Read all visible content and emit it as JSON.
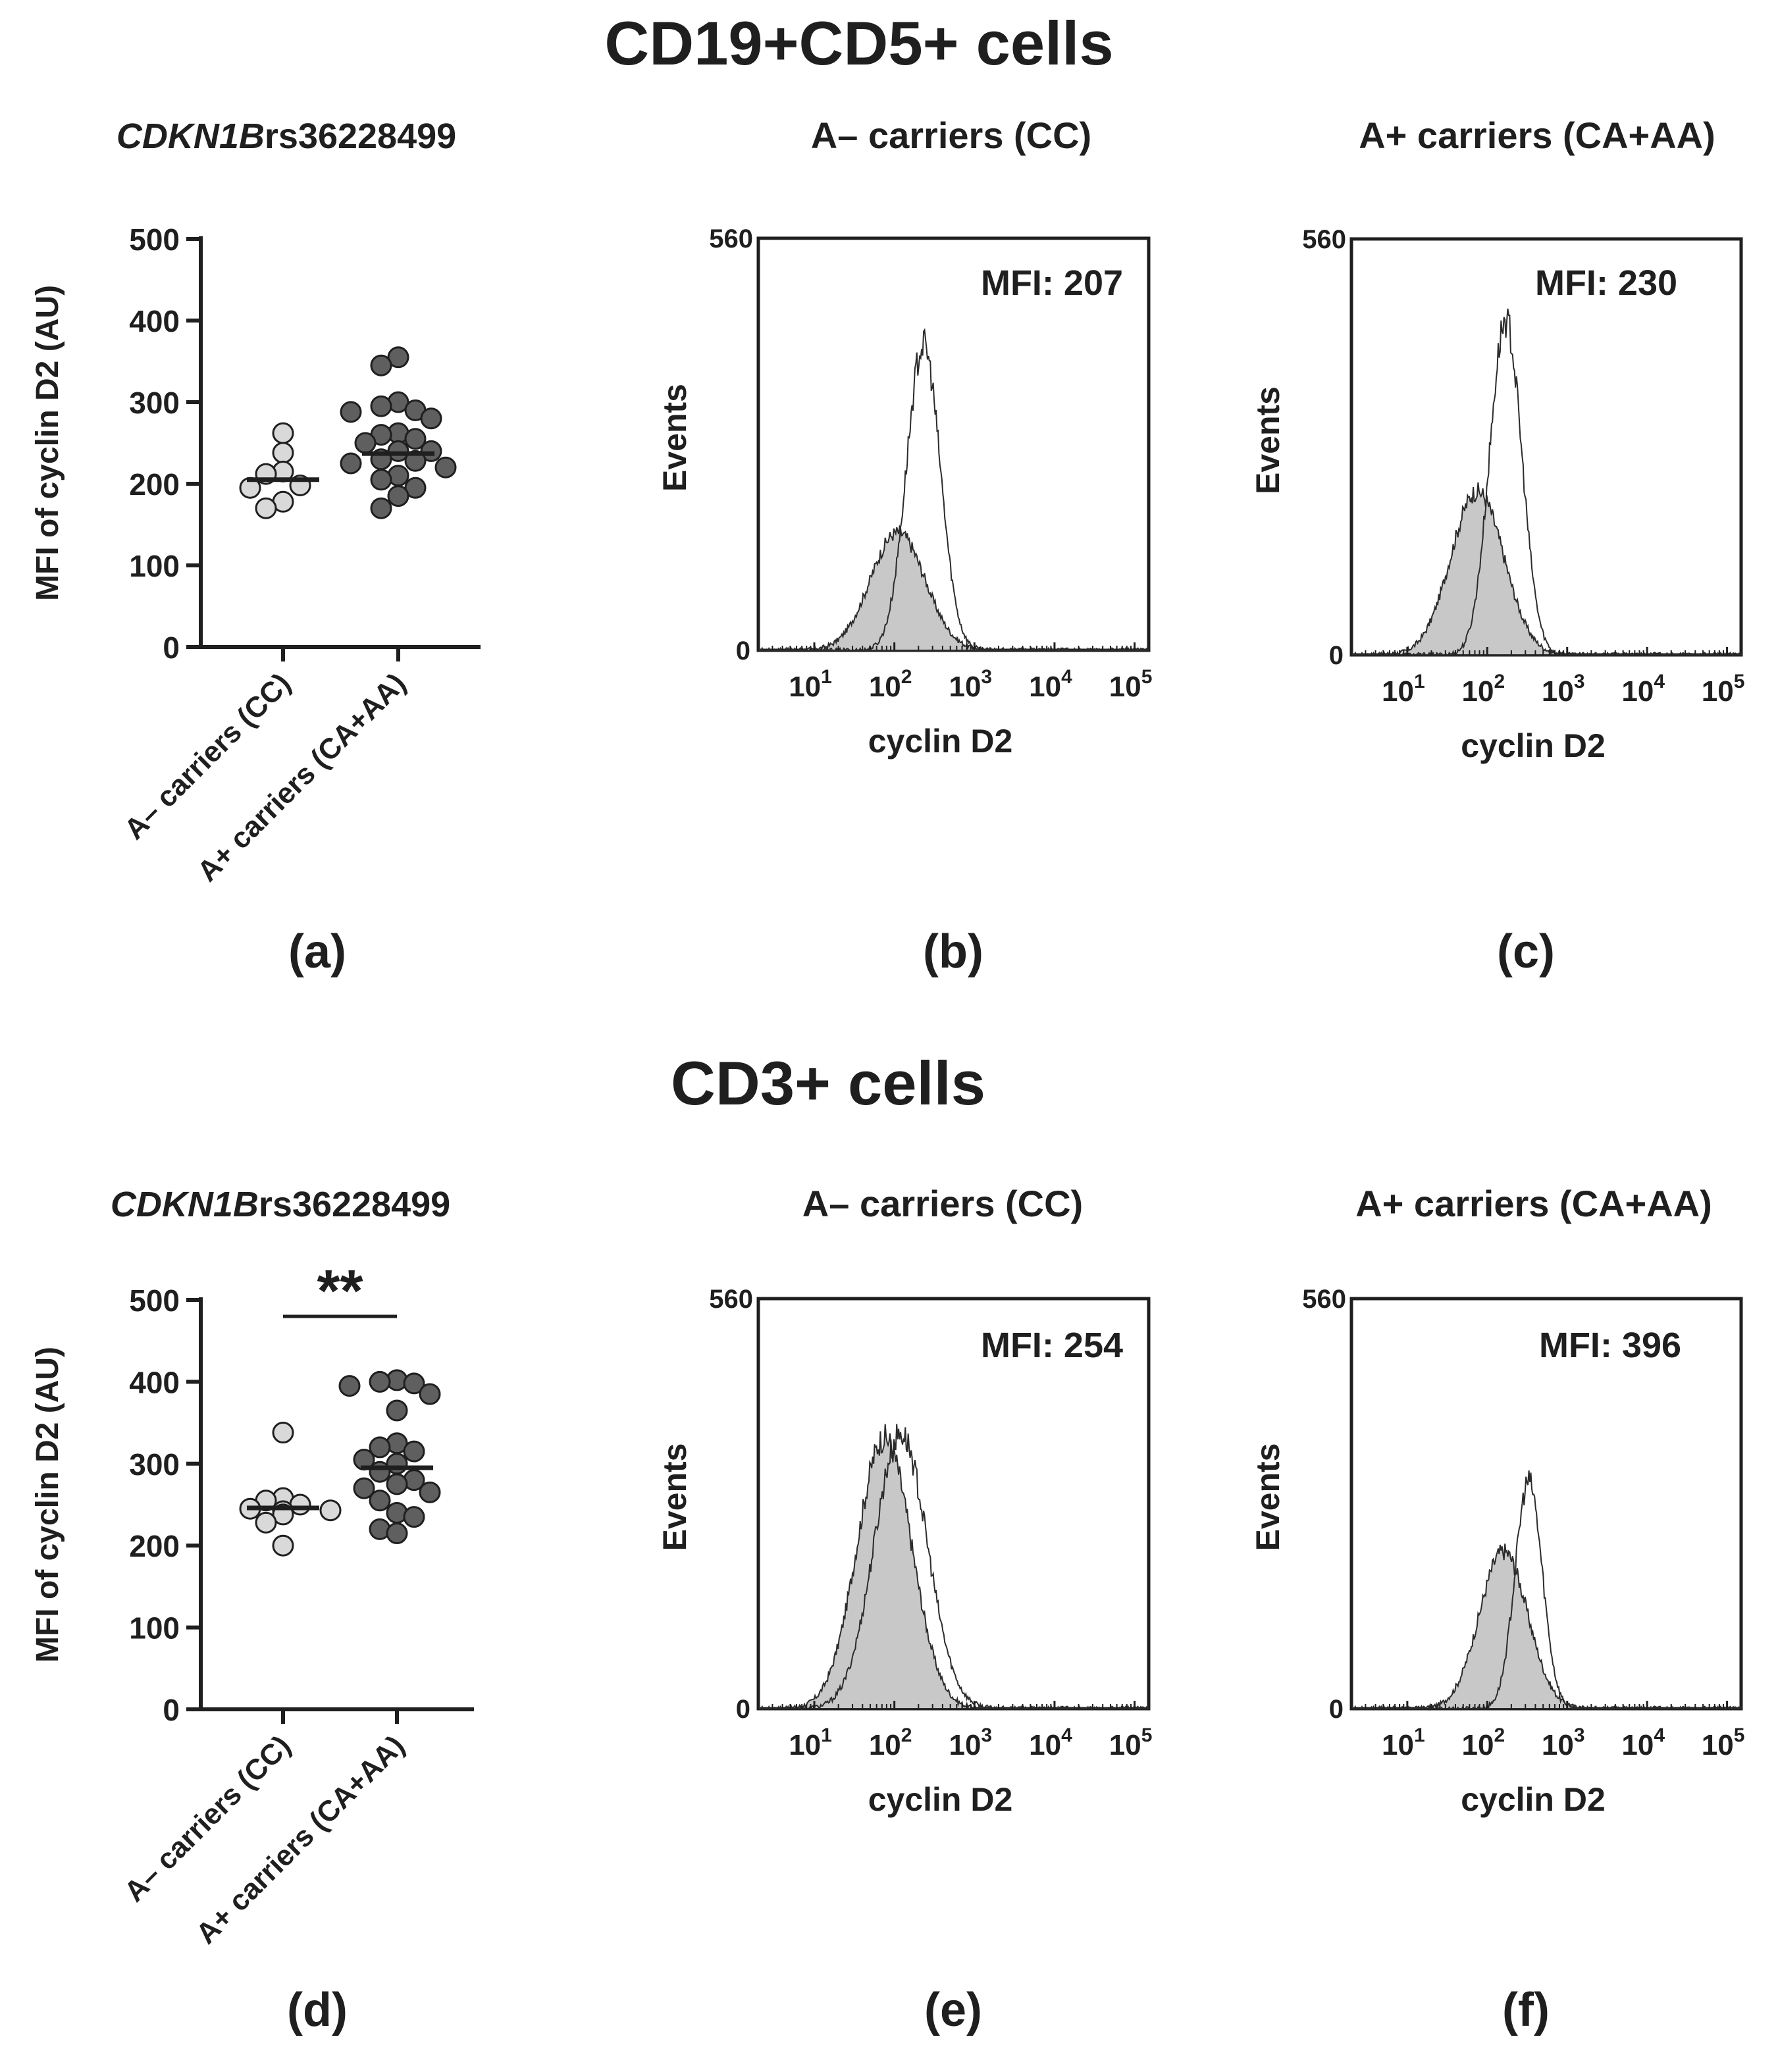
{
  "sections": [
    {
      "title": "CD19+CD5+ cells"
    },
    {
      "title": "CD3+ cells"
    }
  ],
  "panels": {
    "a": {
      "label": "(a)",
      "gene_italic": "CDKN1B",
      "snp": "rs36228499"
    },
    "b": {
      "label": "(b)",
      "title": "A– carriers (CC)",
      "mfi": "MFI: 207"
    },
    "c": {
      "label": "(c)",
      "title": "A+ carriers (CA+AA)",
      "mfi": "MFI: 230"
    },
    "d": {
      "label": "(d)",
      "gene_italic": "CDKN1B",
      "snp": "rs36228499",
      "significance": "**"
    },
    "e": {
      "label": "(e)",
      "title": "A– carriers (CC)",
      "mfi": "MFI: 254"
    },
    "f": {
      "label": "(f)",
      "title": "A+ carriers (CA+AA)",
      "mfi": "MFI: 396"
    }
  },
  "colors": {
    "group_cc": "#d9d9d9",
    "group_ca_aa": "#5f5f5f",
    "isotype_fill": "#c8c8c8",
    "axis": "#1f1f1f"
  },
  "chart_data": [
    {
      "id": "a",
      "type": "scatter",
      "title": "",
      "ylabel": "MFI of cyclin D2 (AU)",
      "ylim": [
        0,
        500
      ],
      "yticks": [
        "0",
        "100",
        "200",
        "300",
        "400",
        "500"
      ],
      "categories": [
        "A– carriers (CC)",
        "A+ carriers (CA+AA)"
      ],
      "series": [
        {
          "values": [
            262,
            238,
            215,
            212,
            198,
            195,
            178,
            170
          ],
          "median": 205
        },
        {
          "values": [
            355,
            345,
            300,
            295,
            290,
            288,
            280,
            262,
            260,
            255,
            250,
            240,
            240,
            230,
            228,
            225,
            220,
            210,
            205,
            195,
            185,
            170
          ],
          "median": 237
        }
      ]
    },
    {
      "id": "b",
      "type": "area",
      "xlabel": "cyclin D2",
      "ylabel": "Events",
      "xscale": "log",
      "xlim": [
        2,
        150000
      ],
      "ylim": [
        0,
        560
      ],
      "yticks": [
        "0",
        "560"
      ],
      "xticks": [
        {
          "base": "10",
          "exp": "1"
        },
        {
          "base": "10",
          "exp": "2"
        },
        {
          "base": "10",
          "exp": "3"
        },
        {
          "base": "10",
          "exp": "4"
        },
        {
          "base": "10",
          "exp": "5"
        }
      ],
      "series": [
        {
          "kind": "isotype_filled",
          "peak": 160,
          "peak_x": 110,
          "sd_log10": 0.34
        },
        {
          "kind": "sample_outline",
          "peak": 415,
          "peak_x": 230,
          "sd_log10": 0.21
        }
      ]
    },
    {
      "id": "c",
      "type": "area",
      "xlabel": "cyclin D2",
      "ylabel": "Events",
      "xscale": "log",
      "xlim": [
        2,
        150000
      ],
      "ylim": [
        0,
        560
      ],
      "yticks": [
        "0",
        "560"
      ],
      "xticks": [
        {
          "base": "10",
          "exp": "1"
        },
        {
          "base": "10",
          "exp": "2"
        },
        {
          "base": "10",
          "exp": "3"
        },
        {
          "base": "10",
          "exp": "4"
        },
        {
          "base": "10",
          "exp": "5"
        }
      ],
      "series": [
        {
          "kind": "isotype_filled",
          "peak": 220,
          "peak_x": 75,
          "sd_log10": 0.33
        },
        {
          "kind": "sample_outline",
          "peak": 450,
          "peak_x": 170,
          "sd_log10": 0.2
        }
      ]
    },
    {
      "id": "d",
      "type": "scatter",
      "title": "",
      "ylabel": "MFI of cyclin D2 (AU)",
      "ylim": [
        0,
        500
      ],
      "yticks": [
        "0",
        "100",
        "200",
        "300",
        "400",
        "500"
      ],
      "categories": [
        "A– carriers (CC)",
        "A+ carriers (CA+AA)"
      ],
      "series": [
        {
          "values": [
            338,
            258,
            255,
            250,
            245,
            243,
            242,
            238,
            228,
            200
          ],
          "median": 246
        },
        {
          "values": [
            402,
            400,
            398,
            395,
            385,
            365,
            325,
            320,
            315,
            305,
            300,
            290,
            280,
            275,
            270,
            265,
            255,
            240,
            235,
            220,
            215
          ],
          "median": 295
        }
      ],
      "significance": "**"
    },
    {
      "id": "e",
      "type": "area",
      "xlabel": "cyclin D2",
      "ylabel": "Events",
      "xscale": "log",
      "xlim": [
        2,
        150000
      ],
      "ylim": [
        0,
        560
      ],
      "yticks": [
        "0",
        "560"
      ],
      "xticks": [
        {
          "base": "10",
          "exp": "1"
        },
        {
          "base": "10",
          "exp": "2"
        },
        {
          "base": "10",
          "exp": "3"
        },
        {
          "base": "10",
          "exp": "4"
        },
        {
          "base": "10",
          "exp": "5"
        }
      ],
      "series": [
        {
          "kind": "isotype_filled",
          "peak": 370,
          "peak_x": 75,
          "sd_log10": 0.34
        },
        {
          "kind": "sample_outline",
          "peak": 375,
          "peak_x": 120,
          "sd_log10": 0.33
        }
      ]
    },
    {
      "id": "f",
      "type": "area",
      "xlabel": "cyclin D2",
      "ylabel": "Events",
      "xscale": "log",
      "xlim": [
        2,
        150000
      ],
      "ylim": [
        0,
        560
      ],
      "yticks": [
        "0",
        "560"
      ],
      "xticks": [
        {
          "base": "10",
          "exp": "1"
        },
        {
          "base": "10",
          "exp": "2"
        },
        {
          "base": "10",
          "exp": "3"
        },
        {
          "base": "10",
          "exp": "4"
        },
        {
          "base": "10",
          "exp": "5"
        }
      ],
      "series": [
        {
          "kind": "isotype_filled",
          "peak": 215,
          "peak_x": 160,
          "sd_log10": 0.3
        },
        {
          "kind": "sample_outline",
          "peak": 310,
          "peak_x": 330,
          "sd_log10": 0.17
        }
      ]
    }
  ]
}
